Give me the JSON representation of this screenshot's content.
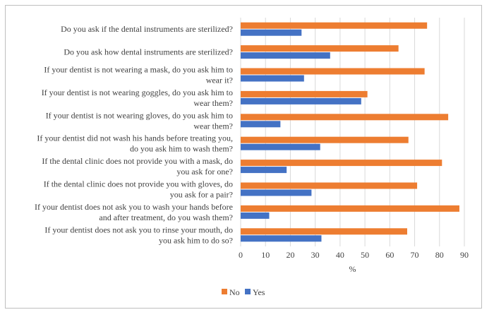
{
  "chart_data": {
    "type": "bar",
    "orientation": "horizontal",
    "categories": [
      [
        "Do you ask if the dental instruments are sterilized?"
      ],
      [
        "Do you ask how dental instruments are sterilized?"
      ],
      [
        "If your dentist is not wearing a mask, do you ask him to",
        "wear it?"
      ],
      [
        "If your dentist is not wearing goggles, do you ask him to",
        "wear them?"
      ],
      [
        "If your dentist is not wearing gloves, do you ask him to",
        "wear them?"
      ],
      [
        "If your dentist did not wash his hands before treating you,",
        "do you ask him to wash them?"
      ],
      [
        "If the dental clinic does not provide you with a mask, do",
        "you ask for one?"
      ],
      [
        "If the dental clinic does not provide you with gloves, do",
        "you ask for a pair?"
      ],
      [
        "If your dentist does not ask you to wash your hands before",
        "and after treatment, do you wash them?"
      ],
      [
        "If your dentist does not ask you to rinse your mouth, do",
        "you ask him to do so?"
      ]
    ],
    "series": [
      {
        "name": "No",
        "color": "#ED7D31",
        "values": [
          75,
          63.5,
          74,
          51,
          83.5,
          67.5,
          81,
          71,
          88,
          67
        ]
      },
      {
        "name": "Yes",
        "color": "#4472C4",
        "values": [
          24.5,
          36,
          25.5,
          48.5,
          16,
          32,
          18.5,
          28.5,
          11.5,
          32.5
        ]
      }
    ],
    "xlabel": "%",
    "xlim": [
      0,
      90
    ],
    "xticks": [
      "0",
      "10",
      "20",
      "30",
      "40",
      "50",
      "60",
      "70",
      "80",
      "90"
    ],
    "grid": "vertical",
    "legend_position": "bottom"
  }
}
